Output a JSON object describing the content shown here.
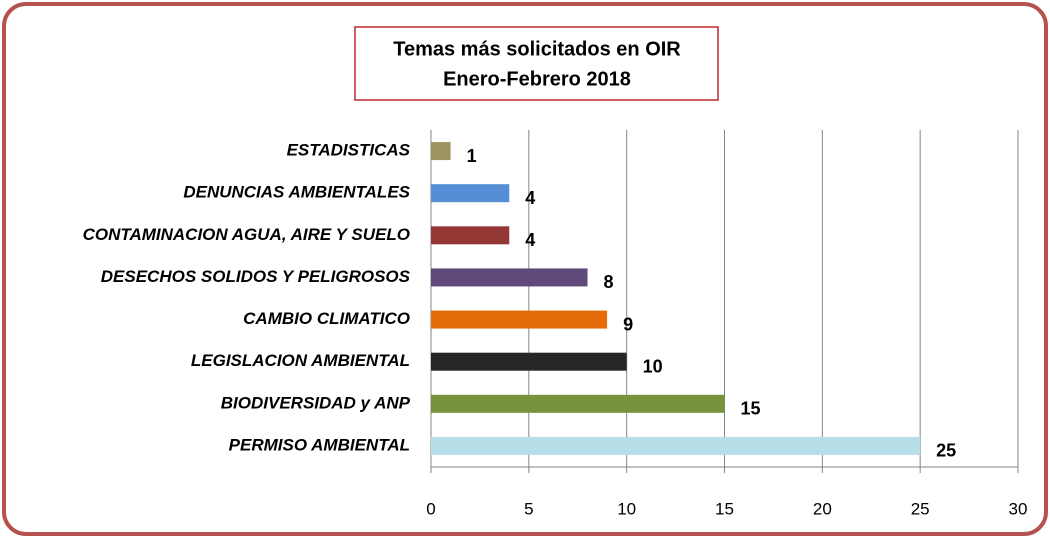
{
  "chart_data": {
    "type": "barh",
    "title": [
      "Temas más solicitados en OIR",
      "Enero-Febrero  2018"
    ],
    "categories": [
      "ESTADISTICAS",
      "DENUNCIAS AMBIENTALES",
      "CONTAMINACION AGUA, AIRE Y SUELO",
      "DESECHOS SOLIDOS Y PELIGROSOS",
      "CAMBIO CLIMATICO",
      "LEGISLACION AMBIENTAL",
      "BIODIVERSIDAD y ANP",
      "PERMISO AMBIENTAL"
    ],
    "values": [
      1,
      4,
      4,
      8,
      9,
      10,
      15,
      25
    ],
    "colors": [
      "#9c9461",
      "#558ed5",
      "#953735",
      "#604a7b",
      "#e46c0a",
      "#262626",
      "#77933c",
      "#b7dee8"
    ],
    "xlim": [
      0,
      30
    ],
    "xticks": [
      0,
      5,
      10,
      15,
      20,
      25,
      30
    ],
    "grid": true
  }
}
